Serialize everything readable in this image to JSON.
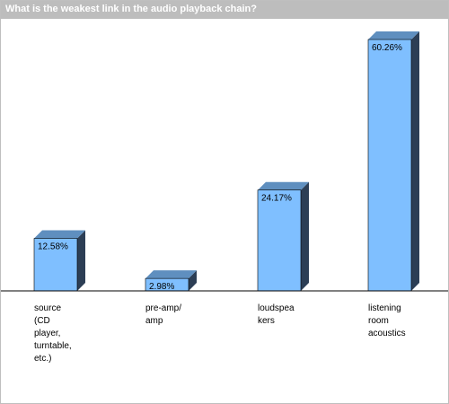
{
  "chart_data": {
    "type": "bar",
    "title": "What is the weakest link in the audio playback chain?",
    "categories": [
      [
        "source",
        "(CD",
        "player,",
        "turntable,",
        "etc.)"
      ],
      [
        "pre-amp/",
        "amp"
      ],
      [
        "loudspea",
        "kers"
      ],
      [
        "listening",
        "room",
        "acoustics"
      ]
    ],
    "values": [
      12.58,
      2.98,
      24.17,
      60.26
    ],
    "value_labels": [
      "12.58%",
      "2.98%",
      "24.17%",
      "60.26%"
    ],
    "ylim": [
      0,
      60.26
    ],
    "grid": false,
    "legend": "none"
  },
  "colors": {
    "bar_front": "#7fbfff",
    "bar_top": "#5f8fbf",
    "bar_side": "#2c3e55",
    "title_bar": "#bdbdbd"
  }
}
